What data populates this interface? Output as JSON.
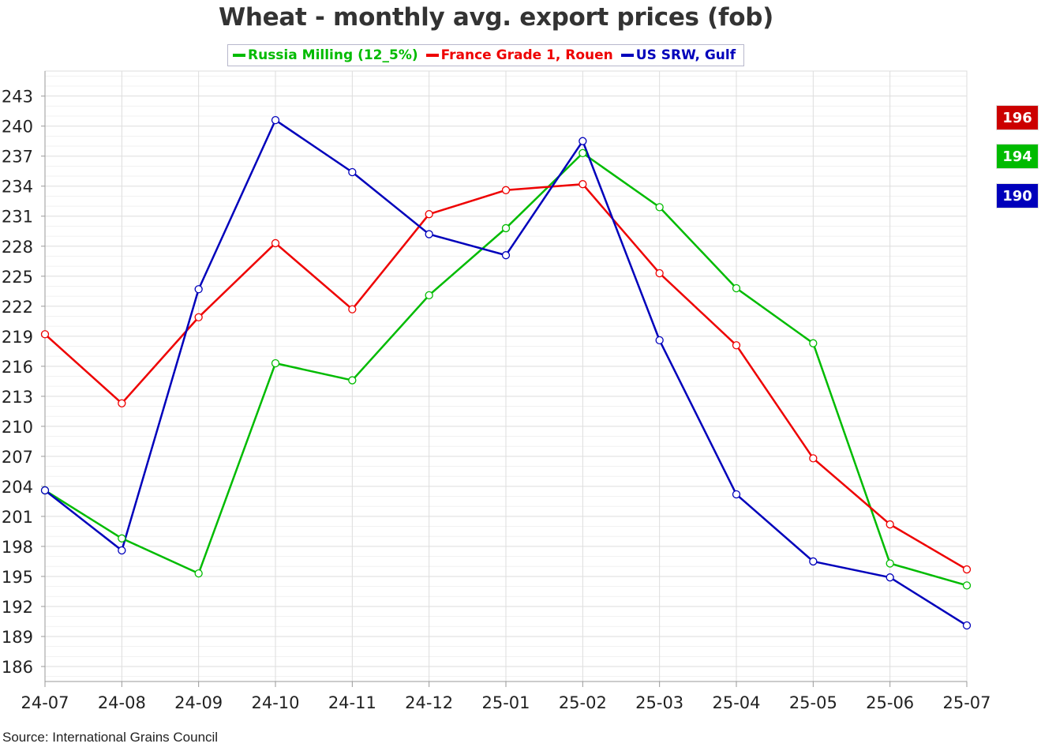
{
  "chart_data": {
    "type": "line",
    "title": "Wheat - monthly avg. export prices (fob)",
    "categories": [
      "24-07",
      "24-08",
      "24-09",
      "24-10",
      "24-11",
      "24-12",
      "25-01",
      "25-02",
      "25-03",
      "25-04",
      "25-05",
      "25-06",
      "25-07"
    ],
    "yticks": [
      "243",
      "240",
      "237",
      "234",
      "231",
      "228",
      "225",
      "222",
      "219",
      "216",
      "213",
      "210",
      "207",
      "204",
      "201",
      "198",
      "195",
      "192",
      "189",
      "186"
    ],
    "ylim": [
      184.5,
      245.5
    ],
    "series": [
      {
        "name": "Russia Milling (12_5%)",
        "color": "#00bb00",
        "values": [
          203.6,
          198.8,
          195.3,
          216.3,
          214.6,
          223.1,
          229.8,
          237.3,
          231.9,
          223.8,
          218.3,
          196.3,
          194.1
        ]
      },
      {
        "name": "France Grade 1, Rouen",
        "color": "#ee0000",
        "values": [
          219.2,
          212.3,
          220.9,
          228.3,
          221.7,
          231.2,
          233.6,
          234.2,
          225.3,
          218.1,
          206.8,
          200.2,
          195.7
        ]
      },
      {
        "name": "US SRW, Gulf",
        "color": "#0000bb",
        "values": [
          203.6,
          197.6,
          223.7,
          240.6,
          235.4,
          229.2,
          227.1,
          238.5,
          218.6,
          203.2,
          196.5,
          194.9,
          190.1
        ]
      }
    ],
    "last_values": [
      {
        "label": "196",
        "color": "#cc0000"
      },
      {
        "label": "194",
        "color": "#00bb00"
      },
      {
        "label": "190",
        "color": "#0000bb"
      }
    ],
    "xlabel": "",
    "ylabel": "",
    "grid": true,
    "legend": "top-center"
  },
  "source": "Source: International Grains Council"
}
